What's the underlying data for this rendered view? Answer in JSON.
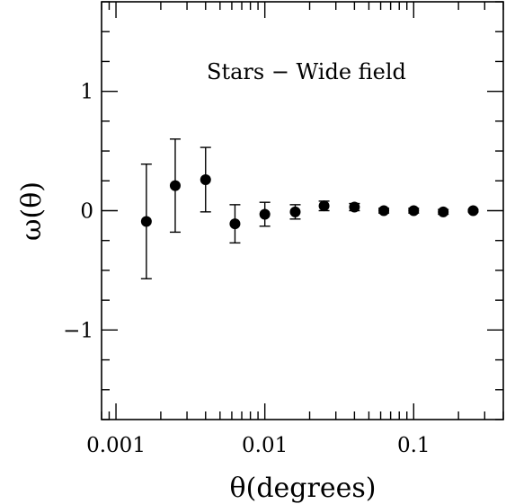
{
  "chart_data": {
    "type": "scatter",
    "xscale": "log",
    "xlim": [
      0.0008,
      0.4
    ],
    "ylim": [
      -1.75,
      1.75
    ],
    "xticks": [
      {
        "value": 0.001,
        "label": "0.001"
      },
      {
        "value": 0.01,
        "label": "0.01"
      },
      {
        "value": 0.1,
        "label": "0.1"
      }
    ],
    "yticks": [
      {
        "value": 1,
        "label": "1"
      },
      {
        "value": 0,
        "label": "0"
      },
      {
        "value": -1,
        "label": "−1"
      }
    ],
    "xlabel": "θ(degrees)",
    "ylabel": "ω(θ)",
    "annotation": "Stars − Wide field",
    "grid": false,
    "series": [
      {
        "x": [
          0.0016,
          0.0025,
          0.004,
          0.0063,
          0.01,
          0.016,
          0.025,
          0.04,
          0.063,
          0.1,
          0.158,
          0.251
        ],
        "y": [
          -0.09,
          0.21,
          0.26,
          -0.11,
          -0.03,
          -0.01,
          0.04,
          0.03,
          0.0,
          0.0,
          -0.01,
          0.0
        ],
        "err": [
          0.48,
          0.39,
          0.27,
          0.16,
          0.1,
          0.06,
          0.04,
          0.03,
          0.02,
          0.02,
          0.02,
          0.01
        ]
      }
    ]
  }
}
